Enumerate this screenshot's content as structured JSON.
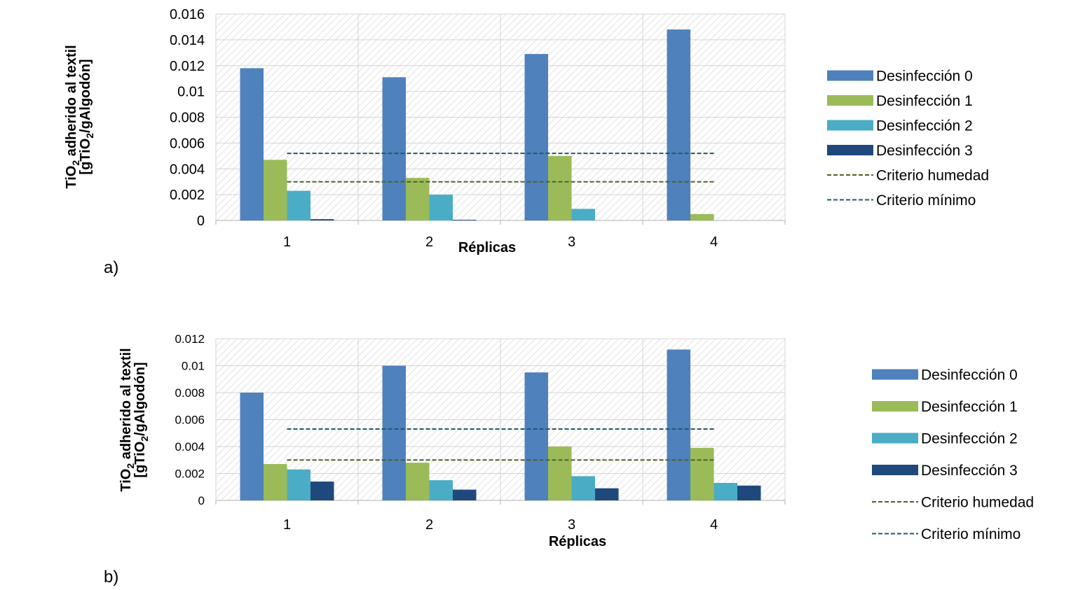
{
  "figure": {
    "panel_labels": [
      "a)",
      "b)"
    ]
  },
  "chart_data": [
    {
      "type": "bar",
      "panel": "a)",
      "categories": [
        "1",
        "2",
        "3",
        "4"
      ],
      "series": [
        {
          "name": "Desinfección 0",
          "color": "#4F81BD",
          "values": [
            0.0118,
            0.0111,
            0.0129,
            0.0148
          ]
        },
        {
          "name": "Desinfección 1",
          "color": "#9BBB59",
          "values": [
            0.0047,
            0.0033,
            0.005,
            0.0005
          ]
        },
        {
          "name": "Desinfección 2",
          "color": "#4BACC6",
          "values": [
            0.0023,
            0.002,
            0.0009,
            0.0
          ]
        },
        {
          "name": "Desinfección 3",
          "color": "#1F497D",
          "values": [
            0.0001,
            5e-05,
            0.0,
            0.0
          ]
        }
      ],
      "reference_lines": [
        {
          "name": "Criterio humedad",
          "color": "#4F6228",
          "value": 0.003
        },
        {
          "name": "Criterio mínimo",
          "color": "#215967",
          "value": 0.0052
        }
      ],
      "xlabel": "Réplicas",
      "ylabel_main": "TiO",
      "ylabel_sub": "2",
      "ylabel_rest": " adherido al textil",
      "ylabel2_pre": "[gTiO",
      "ylabel2_sub": "2",
      "ylabel2_post": "/gAlgodón]",
      "ylim": [
        0,
        0.016
      ],
      "yticks": [
        "0",
        "0.002",
        "0.004",
        "0.006",
        "0.008",
        "0.01",
        "0.012",
        "0.014",
        "0.016"
      ],
      "grid": true,
      "legend_position": "right"
    },
    {
      "type": "bar",
      "panel": "b)",
      "categories": [
        "1",
        "2",
        "3",
        "4"
      ],
      "series": [
        {
          "name": "Desinfección 0",
          "color": "#4F81BD",
          "values": [
            0.008,
            0.01,
            0.0095,
            0.0112
          ]
        },
        {
          "name": "Desinfección 1",
          "color": "#9BBB59",
          "values": [
            0.0027,
            0.0028,
            0.004,
            0.0039
          ]
        },
        {
          "name": "Desinfección 2",
          "color": "#4BACC6",
          "values": [
            0.0023,
            0.0015,
            0.0018,
            0.0013
          ]
        },
        {
          "name": "Desinfección 3",
          "color": "#1F497D",
          "values": [
            0.0014,
            0.0008,
            0.0009,
            0.0011
          ]
        }
      ],
      "reference_lines": [
        {
          "name": "Criterio humedad",
          "color": "#4F6228",
          "value": 0.003
        },
        {
          "name": "Criterio mínimo",
          "color": "#215967",
          "value": 0.0053
        }
      ],
      "xlabel": "Réplicas",
      "ylabel_main": "TiO",
      "ylabel_sub": "2",
      "ylabel_rest": " adherido al textil",
      "ylabel2_pre": "[gTiO",
      "ylabel2_sub": "2",
      "ylabel2_post": "/gAlgodón]",
      "ylim": [
        0,
        0.012
      ],
      "yticks": [
        "0",
        "0.002",
        "0.004",
        "0.006",
        "0.008",
        "0.01",
        "0.012"
      ],
      "grid": true,
      "legend_position": "right"
    }
  ]
}
